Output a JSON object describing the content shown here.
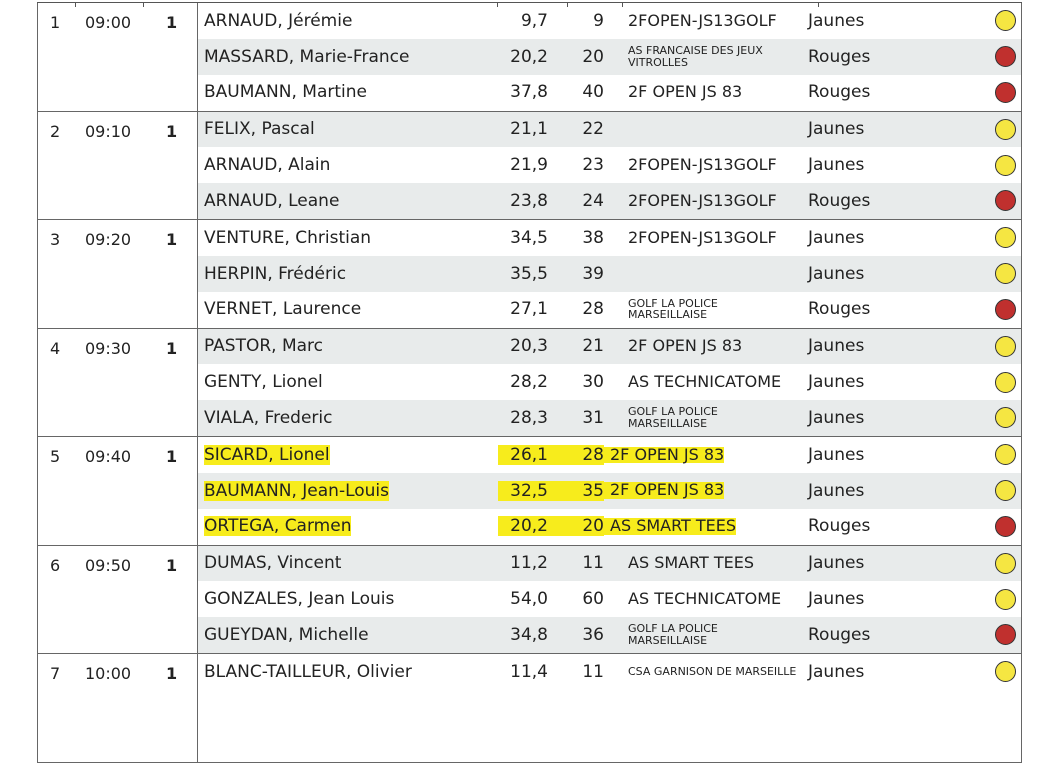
{
  "colors": {
    "yellow_tee": "#f5e642",
    "red_tee": "#c0302e",
    "highlight": "#f7ec1c",
    "row_alt": "#e8ebeb"
  },
  "groups": [
    {
      "no": "1",
      "time": "09:00",
      "tee": "1",
      "players": [
        {
          "name": "ARNAUD, Jérémie",
          "hcp": "9,7",
          "idx": "9",
          "club": "2FOPEN-JS13GOLF",
          "tee": "Jaunes",
          "color": "yellow"
        },
        {
          "name": "MASSARD, Marie-France",
          "hcp": "20,2",
          "idx": "20",
          "club": "AS FRANCAISE DES JEUX VITROLLES",
          "tee": "Rouges",
          "color": "red",
          "small": true
        },
        {
          "name": "BAUMANN, Martine",
          "hcp": "37,8",
          "idx": "40",
          "club": "2F OPEN JS 83",
          "tee": "Rouges",
          "color": "red"
        }
      ]
    },
    {
      "no": "2",
      "time": "09:10",
      "tee": "1",
      "players": [
        {
          "name": "FELIX, Pascal",
          "hcp": "21,1",
          "idx": "22",
          "club": "",
          "tee": "Jaunes",
          "color": "yellow"
        },
        {
          "name": "ARNAUD, Alain",
          "hcp": "21,9",
          "idx": "23",
          "club": "2FOPEN-JS13GOLF",
          "tee": "Jaunes",
          "color": "yellow"
        },
        {
          "name": "ARNAUD, Leane",
          "hcp": "23,8",
          "idx": "24",
          "club": "2FOPEN-JS13GOLF",
          "tee": "Rouges",
          "color": "red"
        }
      ]
    },
    {
      "no": "3",
      "time": "09:20",
      "tee": "1",
      "players": [
        {
          "name": "VENTURE, Christian",
          "hcp": "34,5",
          "idx": "38",
          "club": "2FOPEN-JS13GOLF",
          "tee": "Jaunes",
          "color": "yellow"
        },
        {
          "name": "HERPIN, Frédéric",
          "hcp": "35,5",
          "idx": "39",
          "club": "",
          "tee": "Jaunes",
          "color": "yellow"
        },
        {
          "name": "VERNET, Laurence",
          "hcp": "27,1",
          "idx": "28",
          "club": "GOLF LA POLICE MARSEILLAISE",
          "tee": "Rouges",
          "color": "red",
          "small": true
        }
      ]
    },
    {
      "no": "4",
      "time": "09:30",
      "tee": "1",
      "players": [
        {
          "name": "PASTOR, Marc",
          "hcp": "20,3",
          "idx": "21",
          "club": "2F OPEN JS 83",
          "tee": "Jaunes",
          "color": "yellow"
        },
        {
          "name": "GENTY, Lionel",
          "hcp": "28,2",
          "idx": "30",
          "club": "AS TECHNICATOME",
          "tee": "Jaunes",
          "color": "yellow"
        },
        {
          "name": "VIALA, Frederic",
          "hcp": "28,3",
          "idx": "31",
          "club": "GOLF LA POLICE MARSEILLAISE",
          "tee": "Jaunes",
          "color": "yellow",
          "small": true
        }
      ]
    },
    {
      "no": "5",
      "time": "09:40",
      "tee": "1",
      "players": [
        {
          "name": "SICARD, Lionel",
          "hcp": "26,1",
          "idx": "28",
          "club": "2F OPEN JS 83",
          "tee": "Jaunes",
          "color": "yellow",
          "highlight": true
        },
        {
          "name": "BAUMANN, Jean-Louis",
          "hcp": "32,5",
          "idx": "35",
          "club": "2F OPEN JS 83",
          "tee": "Jaunes",
          "color": "yellow",
          "highlight": true
        },
        {
          "name": "ORTEGA, Carmen",
          "hcp": "20,2",
          "idx": "20",
          "club": "AS SMART TEES",
          "tee": "Rouges",
          "color": "red",
          "highlight": true
        }
      ]
    },
    {
      "no": "6",
      "time": "09:50",
      "tee": "1",
      "players": [
        {
          "name": "DUMAS, Vincent",
          "hcp": "11,2",
          "idx": "11",
          "club": "AS SMART TEES",
          "tee": "Jaunes",
          "color": "yellow"
        },
        {
          "name": "GONZALES, Jean Louis",
          "hcp": "54,0",
          "idx": "60",
          "club": "AS TECHNICATOME",
          "tee": "Jaunes",
          "color": "yellow"
        },
        {
          "name": "GUEYDAN, Michelle",
          "hcp": "34,8",
          "idx": "36",
          "club": "GOLF LA POLICE MARSEILLAISE",
          "tee": "Rouges",
          "color": "red",
          "small": true
        }
      ]
    },
    {
      "no": "7",
      "time": "10:00",
      "tee": "1",
      "players": [
        {
          "name": "BLANC-TAILLEUR, Olivier",
          "hcp": "11,4",
          "idx": "11",
          "club": "CSA GARNISON DE MARSEILLE",
          "tee": "Jaunes",
          "color": "yellow",
          "small": true
        }
      ]
    }
  ]
}
